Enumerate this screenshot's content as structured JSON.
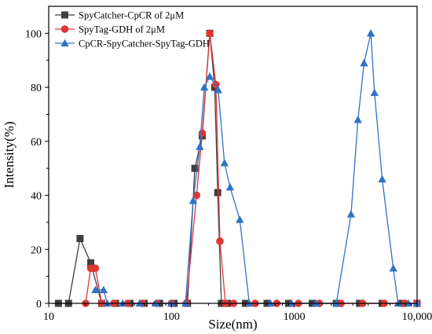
{
  "chart_data": {
    "type": "line",
    "title": "",
    "xlabel": "Size(nm)",
    "ylabel": "Intensity(%)",
    "x_scale": "log",
    "xlim": [
      10,
      10000
    ],
    "ylim": [
      0,
      110
    ],
    "x_ticks": [
      10,
      100,
      1000,
      10000
    ],
    "x_tick_labels": [
      "10",
      "100",
      "1000",
      "10,000"
    ],
    "y_ticks": [
      0,
      20,
      40,
      60,
      80,
      100
    ],
    "y_tick_labels": [
      "0",
      "20",
      "40",
      "60",
      "80",
      "100"
    ],
    "grid": false,
    "legend_position": "top-left",
    "series": [
      {
        "name": "SpyCatcher-CpCR of 2μM",
        "color": "#3f3f3f",
        "marker": "square",
        "x": [
          12,
          14.5,
          18,
          22,
          27,
          35,
          46,
          60,
          80,
          105,
          135,
          155,
          178,
          205,
          225,
          238,
          255,
          285,
          400,
          600,
          900,
          1400,
          2200,
          3400,
          5200,
          7600,
          10000
        ],
        "y": [
          0,
          0,
          24,
          15,
          0,
          0,
          0,
          0,
          0,
          0,
          0,
          50,
          62,
          100,
          80,
          41,
          0,
          0,
          0,
          0,
          0,
          0,
          0,
          0,
          0,
          0,
          0
        ]
      },
      {
        "name": "SpyTag-GDH of 2μM",
        "color": "#e03535",
        "marker": "circle",
        "x": [
          20,
          22,
          24,
          27,
          34,
          44,
          58,
          76,
          100,
          132,
          160,
          178,
          205,
          230,
          248,
          275,
          320,
          480,
          720,
          1080,
          1600,
          2400,
          3600,
          5400,
          8000,
          10000
        ],
        "y": [
          0,
          13,
          13,
          0,
          0,
          0,
          0,
          0,
          0,
          0,
          40,
          63,
          100,
          81,
          23,
          0,
          0,
          0,
          0,
          0,
          0,
          0,
          0,
          0,
          0,
          0
        ]
      },
      {
        "name": "CpCR-SpyCatcher-SpyTag-GDH",
        "color": "#2f72c8",
        "marker": "triangle",
        "x": [
          24,
          28,
          30,
          40,
          55,
          75,
          100,
          130,
          150,
          170,
          185,
          205,
          240,
          270,
          300,
          360,
          430,
          640,
          950,
          1500,
          2200,
          2900,
          3300,
          3700,
          4200,
          4500,
          5200,
          6400,
          7000,
          8500,
          10000
        ],
        "y": [
          5,
          5,
          0,
          0,
          0,
          0,
          0,
          0,
          38,
          58,
          80,
          84,
          79,
          52,
          43,
          31,
          0,
          0,
          0,
          0,
          0,
          33,
          68,
          89,
          100,
          78,
          46,
          13,
          0,
          0,
          0
        ]
      }
    ]
  }
}
